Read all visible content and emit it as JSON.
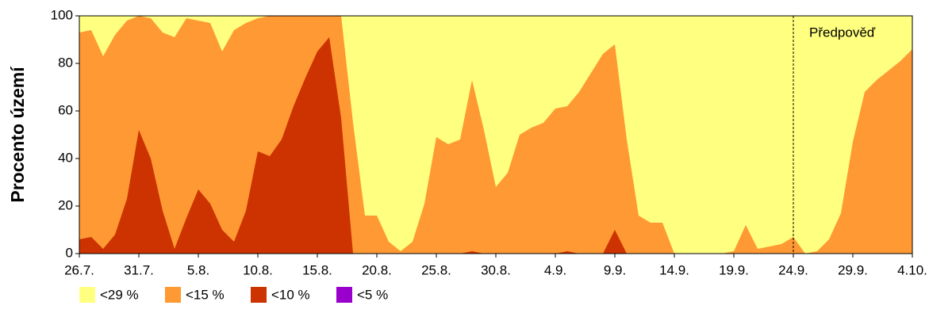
{
  "chart_data": {
    "type": "area",
    "y_label": "Procento území",
    "categories": [
      "26.7.",
      null,
      null,
      null,
      null,
      "31.7.",
      null,
      null,
      null,
      null,
      "5.8.",
      null,
      null,
      null,
      null,
      "10.8.",
      null,
      null,
      null,
      null,
      "15.8.",
      null,
      null,
      null,
      null,
      "20.8.",
      null,
      null,
      null,
      null,
      "25.8.",
      null,
      null,
      null,
      null,
      "30.8.",
      null,
      null,
      null,
      null,
      "4.9.",
      null,
      null,
      null,
      null,
      "9.9.",
      null,
      null,
      null,
      null,
      "14.9.",
      null,
      null,
      null,
      null,
      "19.9.",
      null,
      null,
      null,
      null,
      "24.9.",
      null,
      null,
      null,
      null,
      "29.9.",
      null,
      null,
      null,
      null,
      "4.10."
    ],
    "series": [
      {
        "name": "<29 %",
        "color": "#ffff80",
        "values": [
          100,
          100,
          100,
          100,
          100,
          100,
          100,
          100,
          100,
          100,
          100,
          100,
          100,
          100,
          100,
          100,
          100,
          100,
          100,
          100,
          100,
          100,
          100,
          100,
          100,
          100,
          100,
          100,
          100,
          100,
          100,
          100,
          100,
          100,
          100,
          100,
          100,
          100,
          100,
          100,
          100,
          100,
          100,
          100,
          100,
          100,
          100,
          100,
          100,
          100,
          100,
          100,
          100,
          100,
          100,
          100,
          100,
          100,
          100,
          100,
          100,
          100,
          100,
          100,
          100,
          100,
          100,
          100,
          100,
          100,
          100
        ]
      },
      {
        "name": "<15 %",
        "color": "#ff9933",
        "values": [
          93,
          94,
          83,
          92,
          98,
          100,
          99,
          93,
          91,
          99,
          98,
          97,
          85,
          94,
          97,
          99,
          100,
          100,
          100,
          100,
          100,
          100,
          100,
          55,
          16,
          16,
          5,
          1,
          5,
          21,
          49,
          46,
          48,
          73,
          52,
          28,
          34,
          50,
          53,
          55,
          61,
          62,
          68,
          76,
          84,
          88,
          48,
          16,
          13,
          13,
          0,
          0,
          0,
          0,
          0,
          1,
          12,
          2,
          3,
          4,
          7,
          0,
          1,
          6,
          17,
          47,
          68,
          73,
          77,
          81,
          86
        ]
      },
      {
        "name": "<10 %",
        "color": "#cc3300",
        "values": [
          6,
          7,
          2,
          8,
          23,
          52,
          40,
          18,
          2,
          15,
          27,
          21,
          10,
          5,
          18,
          43,
          41,
          48,
          62,
          74,
          85,
          91,
          57,
          0,
          0,
          0,
          0,
          0,
          0,
          0,
          0,
          0,
          0,
          1,
          0,
          0,
          0,
          0,
          0,
          0,
          0,
          1,
          0,
          0,
          0,
          10,
          0,
          0,
          0,
          0,
          0,
          0,
          0,
          0,
          0,
          0,
          0,
          0,
          0,
          0,
          0,
          0,
          0,
          0,
          0,
          0,
          0,
          0,
          0,
          0,
          0
        ]
      },
      {
        "name": "<5 %",
        "color": "#9900cc",
        "values": [
          0,
          0,
          0,
          0,
          0,
          0,
          0,
          0,
          0,
          0,
          0,
          0,
          0,
          0,
          0,
          0,
          0,
          0,
          0,
          0,
          0,
          0,
          0,
          0,
          0,
          0,
          0,
          0,
          0,
          0,
          0,
          0,
          0,
          0,
          0,
          0,
          0,
          0,
          0,
          0,
          0,
          0,
          0,
          0,
          0,
          0,
          0,
          0,
          0,
          0,
          0,
          0,
          0,
          0,
          0,
          0,
          0,
          0,
          0,
          0,
          0,
          0,
          0,
          0,
          0,
          0,
          0,
          0,
          0,
          0,
          0
        ]
      }
    ],
    "annotations": [
      {
        "text": "Předpověď",
        "x": "24.9."
      }
    ],
    "ylim": [
      0,
      100
    ],
    "yticks": [
      0,
      20,
      40,
      60,
      80,
      100
    ]
  }
}
